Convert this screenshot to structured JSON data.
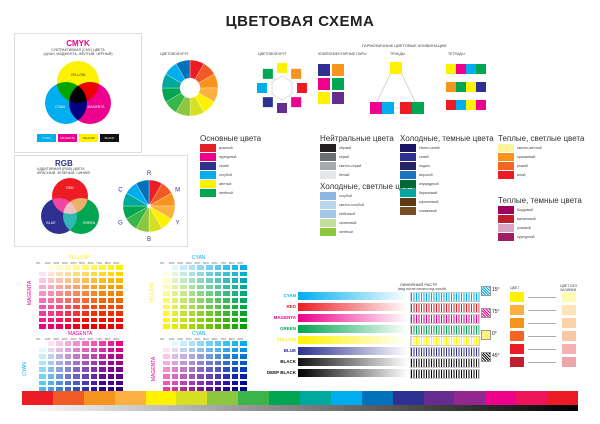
{
  "title": "ЦВЕТОВАЯ СХЕМА",
  "cmyk": {
    "heading": "CMYK",
    "sub1": "СУБТРАКТИВНАЯ (CMY) ЦВЕТА",
    "sub2": "(ЦИАН, МАДЖЕНТА, ЖЁЛТЫЙ, ЧЁРНЫЙ)",
    "circle_labels": [
      "YELLOW",
      "CYAN",
      "MAGENTA"
    ],
    "chips": [
      {
        "label": "CYAN",
        "color": "#00aeef"
      },
      {
        "label": "MAGENTA",
        "color": "#ec008c"
      },
      {
        "label": "YELLOW",
        "color": "#fff200"
      },
      {
        "label": "BLACK",
        "color": "#111111"
      }
    ]
  },
  "rgb": {
    "heading": "RGB",
    "sub1": "АДДИТИВНАЯ (RGB) ЦВЕТА",
    "sub2": "(КРАСНЫЙ, ЗЕЛЁНЫЙ, СИНИЙ)",
    "circle_labels": [
      "RED",
      "BLUE",
      "GREEN"
    ],
    "wheel_letters": [
      "R",
      "M",
      "Y",
      "B",
      "G",
      "C"
    ]
  },
  "wheel_titles": {
    "wheel1": "ЦВЕТОВОЙ КРУГ",
    "wheel2": "ЦВЕТОВОЙ КРУГ",
    "harmony": "ГАРМОНИЧНЫЕ ЦВЕТОВЫЕ КОМБИНАЦИИ",
    "h1": "КОМПЛЕМЕНТАРНЫЕ ПАРЫ",
    "h2": "ТРИАДЫ",
    "h3": "ТЕТРАДЫ"
  },
  "palettes": [
    {
      "heading": "Основные цвета",
      "items": [
        {
          "color": "#e31e24",
          "name": "красный"
        },
        {
          "color": "#ec008c",
          "name": "пурпурный"
        },
        {
          "color": "#2e3192",
          "name": "синий"
        },
        {
          "color": "#00aeef",
          "name": "голубой"
        },
        {
          "color": "#fff200",
          "name": "жёлтый"
        },
        {
          "color": "#00a651",
          "name": "зелёный"
        }
      ]
    },
    {
      "heading": "Нейтральные цвета",
      "items": [
        {
          "color": "#231f20",
          "name": "чёрный"
        },
        {
          "color": "#6d6e71",
          "name": "серый"
        },
        {
          "color": "#a7a9ac",
          "name": "светло-серый"
        },
        {
          "color": "#e6e7e8",
          "name": "белый"
        }
      ]
    },
    {
      "heading": "Холодные, светлые цвета",
      "items": [
        {
          "color": "#8fb6e0",
          "name": "голубой"
        },
        {
          "color": "#b8d7ec",
          "name": "светло-голубой"
        },
        {
          "color": "#a3c6e8",
          "name": "небесный"
        },
        {
          "color": "#c4df9b",
          "name": "салатовый"
        },
        {
          "color": "#8dc63f",
          "name": "зелёный"
        }
      ]
    },
    {
      "heading": "Холодные, темные цвета",
      "items": [
        {
          "color": "#1b1464",
          "name": "тёмно-синий"
        },
        {
          "color": "#2e3192",
          "name": "синий"
        },
        {
          "color": "#262262",
          "name": "индиго"
        },
        {
          "color": "#1c75bc",
          "name": "морской"
        },
        {
          "color": "#006837",
          "name": "изумрудный"
        },
        {
          "color": "#00a99d",
          "name": "бирюзовый"
        },
        {
          "color": "#603913",
          "name": "коричневый"
        },
        {
          "color": "#754c24",
          "name": "оливковый"
        }
      ]
    },
    {
      "heading": "Теплые, светлые цвета",
      "items": [
        {
          "color": "#fbf49c",
          "name": "светло-жёлтый"
        },
        {
          "color": "#f7941d",
          "name": "оранжевый"
        },
        {
          "color": "#f26522",
          "name": "рыжий"
        },
        {
          "color": "#ed1c24",
          "name": "алый"
        }
      ]
    },
    {
      "heading": "Теплые, темные цвета",
      "items": [
        {
          "color": "#9e005d",
          "name": "бордовый"
        },
        {
          "color": "#be1e2d",
          "name": "малиновый"
        },
        {
          "color": "#d7a4c4",
          "name": "розовый"
        },
        {
          "color": "#9e1f63",
          "name": "пурпурный"
        }
      ]
    }
  ],
  "grids": [
    {
      "label_top": "YELLOW",
      "label_side": "MAGENTA",
      "c1": "#ec008c",
      "c2": "#fff200"
    },
    {
      "label_top": "CYAN",
      "label_side": "YELLOW",
      "c1": "#fff200",
      "c2": "#00aeef"
    },
    {
      "label_top": "MAGENTA",
      "label_side": "CYAN",
      "c1": "#00aeef",
      "c2": "#ec008c"
    },
    {
      "label_top": "CYAN",
      "label_side": "MAGENTA",
      "c1": "#ec008c",
      "c2": "#00aeef"
    }
  ],
  "tick_labels": [
    "0%",
    "10%",
    "20%",
    "30%",
    "40%",
    "50%",
    "60%",
    "70%",
    "80%",
    "90%",
    "100%"
  ],
  "raster": {
    "heading": "ЛИНЕЙНЫЙ РАСТР",
    "subheading": "(вид после печати под лупой)",
    "rows": [
      {
        "label": "CYAN",
        "color": "#00aeef",
        "label_color": "#00aeef"
      },
      {
        "label": "RED",
        "color": "#ed1c24",
        "label_color": "#ed1c24"
      },
      {
        "label": "MAGENTA",
        "color": "#ec008c",
        "label_color": "#ec008c"
      },
      {
        "label": "GREEN",
        "color": "#00a651",
        "label_color": "#00a651"
      },
      {
        "label": "YELLOW",
        "color": "#fff200",
        "label_color": "#fff200"
      },
      {
        "label": "BLUE",
        "color": "#2e3192",
        "label_color": "#2e3192"
      },
      {
        "label": "BLACK",
        "color": "#111111",
        "label_color": "#111111"
      },
      {
        "label": "DEEP BLACK",
        "color": "#000000",
        "label_color": "#111111"
      }
    ],
    "angles": [
      "15°",
      "75°",
      "0°",
      "45°"
    ],
    "angle_colors": [
      "#00aeef",
      "#ec008c",
      "#fff200",
      "#111111"
    ]
  },
  "warm_column": {
    "head1": "ЦВЕТ",
    "head2": "ЦВЕТ БЕЗ ЗАЛИВКИ",
    "items": [
      {
        "color": "#fff200",
        "light": "#fffbb0"
      },
      {
        "color": "#fbb040",
        "light": "#fde3b8"
      },
      {
        "color": "#f7941d",
        "light": "#fcd2a6"
      },
      {
        "color": "#f26522",
        "light": "#f9c6a6"
      },
      {
        "color": "#ed1c24",
        "light": "#f6b0b0"
      },
      {
        "color": "#be1e2d",
        "light": "#eba6ab"
      }
    ]
  },
  "spectrum": [
    "#ed1c24",
    "#f15a24",
    "#f7941d",
    "#fbb040",
    "#fff200",
    "#d7df23",
    "#8dc63f",
    "#39b54a",
    "#00a651",
    "#00a99d",
    "#00aeef",
    "#0072bc",
    "#2e3192",
    "#662d91",
    "#92278f",
    "#ec008c",
    "#ed145b",
    "#ed1c24"
  ]
}
